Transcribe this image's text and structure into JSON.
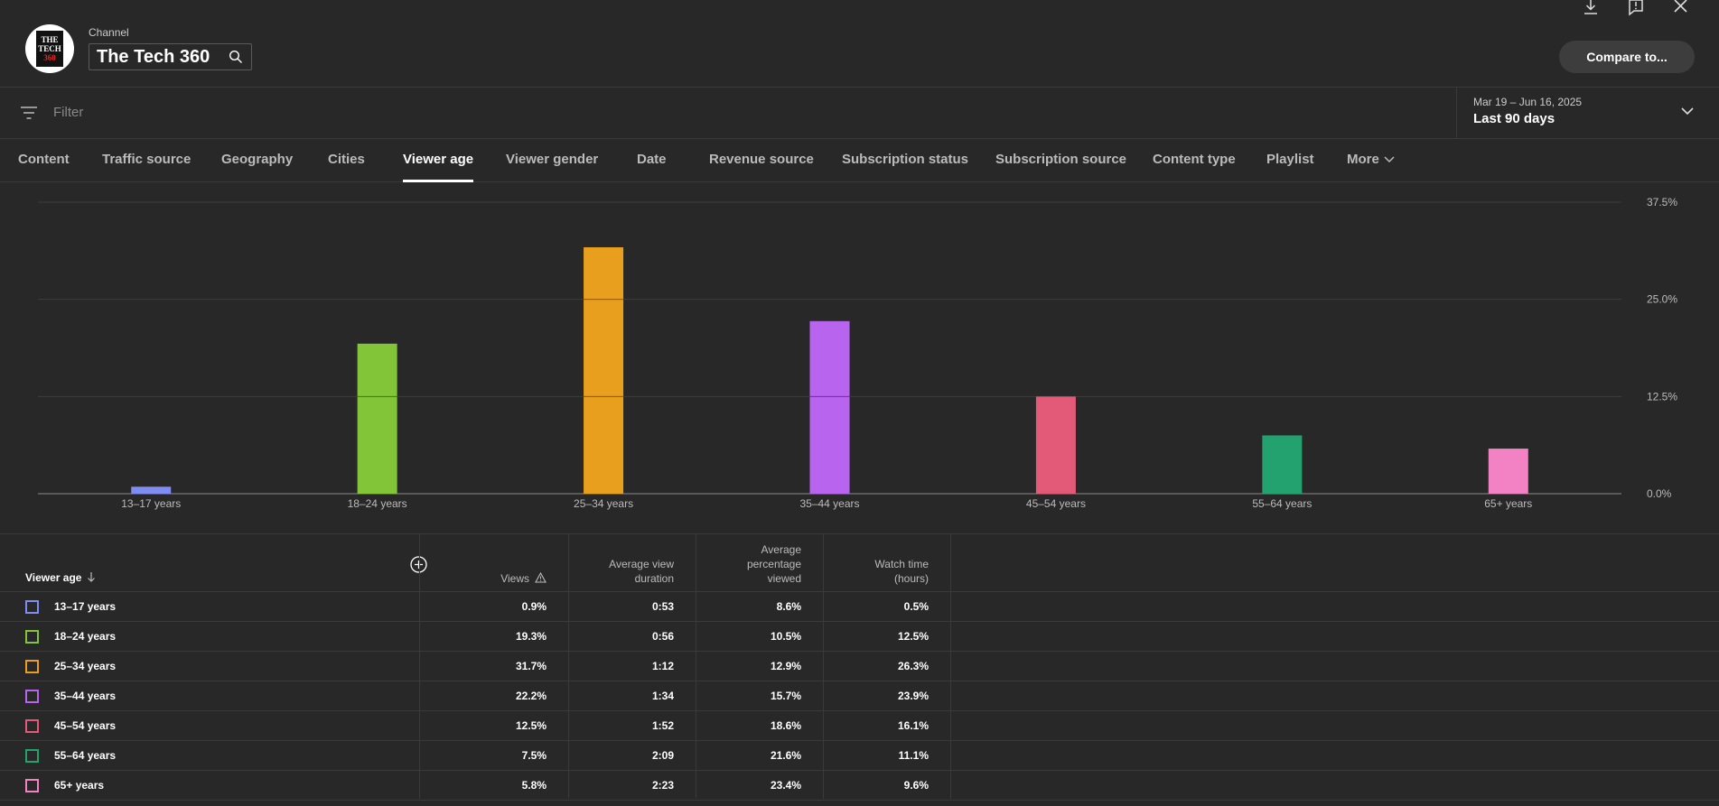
{
  "header": {
    "channel_label": "Channel",
    "channel_name": "The Tech 360",
    "logo_lines": [
      "THE",
      "TECH",
      "360"
    ],
    "compare_label": "Compare to..."
  },
  "filter": {
    "placeholder": "Filter",
    "date_range": "Mar 19 – Jun 16, 2025",
    "date_label": "Last 90 days"
  },
  "tabs": [
    {
      "label": "Content",
      "active": false
    },
    {
      "label": "Traffic source",
      "active": false
    },
    {
      "label": "Geography",
      "active": false
    },
    {
      "label": "Cities",
      "active": false
    },
    {
      "label": "Viewer age",
      "active": true
    },
    {
      "label": "Viewer gender",
      "active": false
    },
    {
      "label": "Date",
      "active": false
    },
    {
      "label": "Revenue source",
      "active": false
    },
    {
      "label": "Subscription status",
      "active": false
    },
    {
      "label": "Subscription source",
      "active": false
    },
    {
      "label": "Content type",
      "active": false
    },
    {
      "label": "Playlist",
      "active": false
    },
    {
      "label": "More",
      "active": false
    }
  ],
  "chart_data": {
    "type": "bar",
    "categories": [
      "13–17 years",
      "18–24 years",
      "25–34 years",
      "35–44 years",
      "45–54 years",
      "55–64 years",
      "65+ years"
    ],
    "values": [
      0.9,
      19.3,
      31.7,
      22.2,
      12.5,
      7.5,
      5.8
    ],
    "colors": [
      "#7e8cf4",
      "#83c538",
      "#e89f1e",
      "#b964ef",
      "#e25a77",
      "#23a16f",
      "#f282c3"
    ],
    "ylim": [
      0,
      37.5
    ],
    "yticks": [
      "0.0%",
      "12.5%",
      "25.0%",
      "37.5%"
    ],
    "ytick_values": [
      0,
      12.5,
      25,
      37.5
    ],
    "grid": true
  },
  "table": {
    "headers": {
      "viewer_age": "Viewer age",
      "views": "Views",
      "avg_view_duration": [
        "Average view",
        "duration"
      ],
      "avg_pct_viewed": [
        "Average",
        "percentage",
        "viewed"
      ],
      "watch_time": [
        "Watch time",
        "(hours)"
      ]
    },
    "rows": [
      {
        "label": "13–17 years",
        "color": "#7e8cf4",
        "views": "0.9%",
        "avd": "0:53",
        "apv": "8.6%",
        "wt": "0.5%"
      },
      {
        "label": "18–24 years",
        "color": "#83c538",
        "views": "19.3%",
        "avd": "0:56",
        "apv": "10.5%",
        "wt": "12.5%"
      },
      {
        "label": "25–34 years",
        "color": "#e89f1e",
        "views": "31.7%",
        "avd": "1:12",
        "apv": "12.9%",
        "wt": "26.3%"
      },
      {
        "label": "35–44 years",
        "color": "#b964ef",
        "views": "22.2%",
        "avd": "1:34",
        "apv": "15.7%",
        "wt": "23.9%"
      },
      {
        "label": "45–54 years",
        "color": "#e25a77",
        "views": "12.5%",
        "avd": "1:52",
        "apv": "18.6%",
        "wt": "16.1%"
      },
      {
        "label": "55–64 years",
        "color": "#23a16f",
        "views": "7.5%",
        "avd": "2:09",
        "apv": "21.6%",
        "wt": "11.1%"
      },
      {
        "label": "65+ years",
        "color": "#f282c3",
        "views": "5.8%",
        "avd": "2:23",
        "apv": "23.4%",
        "wt": "9.6%"
      }
    ]
  }
}
